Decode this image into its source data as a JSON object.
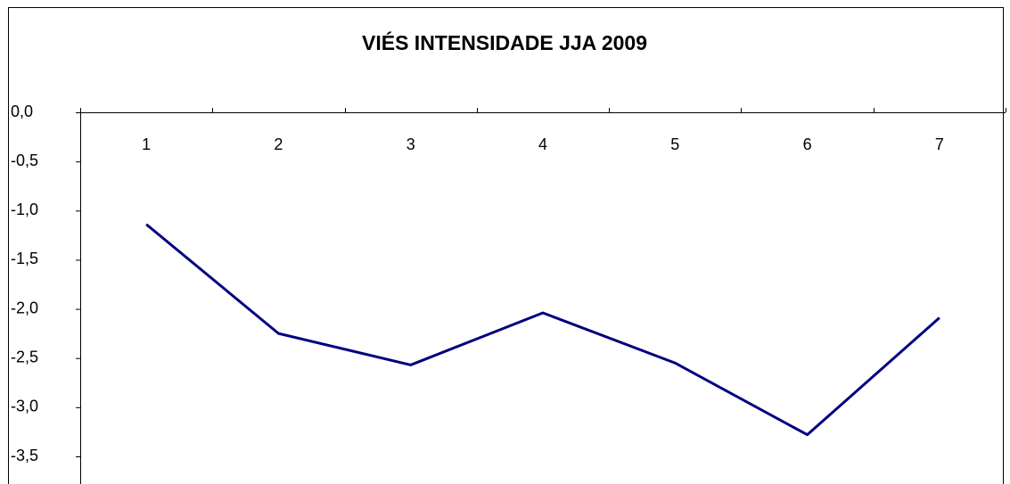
{
  "chart_data": {
    "type": "line",
    "title": "VIÉS INTENSIDADE JJA 2009",
    "categories": [
      "1",
      "2",
      "3",
      "4",
      "5",
      "6",
      "7"
    ],
    "series": [
      {
        "name": null,
        "color": "#000080",
        "values": [
          -1.14,
          -2.25,
          -2.57,
          -2.04,
          -2.55,
          -3.28,
          -2.09
        ]
      }
    ],
    "ylim": [
      -3.5,
      0
    ],
    "yticks": [
      {
        "value": 0,
        "label": "0,0"
      },
      {
        "value": -0.5,
        "label": "-0,5"
      },
      {
        "value": -1,
        "label": "-1,0"
      },
      {
        "value": -1.5,
        "label": "-1,5"
      },
      {
        "value": -2,
        "label": "-2,0"
      },
      {
        "value": -2.5,
        "label": "-2,5"
      },
      {
        "value": -3,
        "label": "-3,0"
      },
      {
        "value": -3.5,
        "label": "-3,5"
      }
    ],
    "grid": false
  }
}
